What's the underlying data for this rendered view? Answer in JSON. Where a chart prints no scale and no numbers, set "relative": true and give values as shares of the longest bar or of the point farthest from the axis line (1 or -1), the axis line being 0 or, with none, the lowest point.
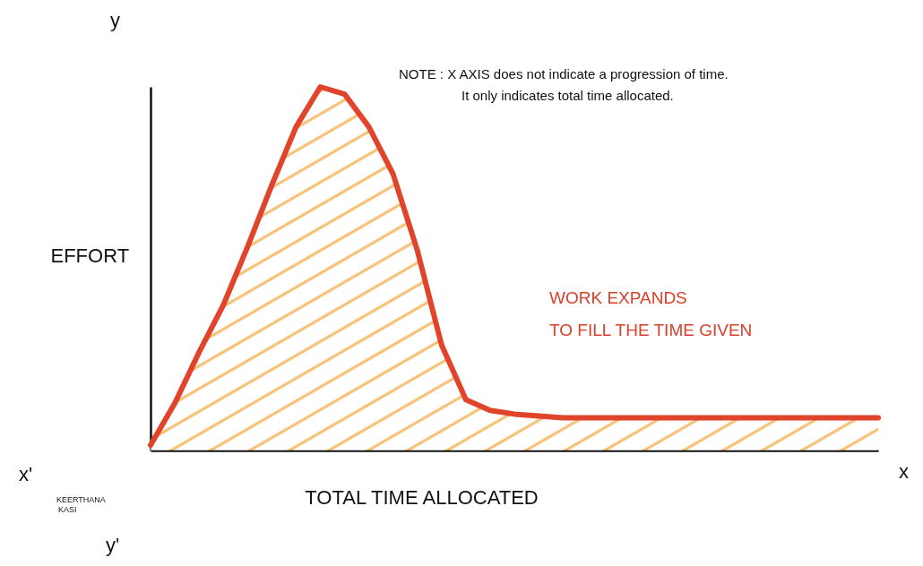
{
  "chart_data": {
    "type": "area",
    "relative": true,
    "xlabel": "TOTAL TIME ALLOCATED",
    "ylabel": "EFFORT",
    "categories": [
      null,
      null,
      null,
      null,
      null,
      null,
      null,
      null,
      null,
      null,
      null,
      null,
      null,
      null,
      null,
      null,
      null,
      null,
      null,
      null,
      null,
      null,
      null,
      null,
      null,
      null,
      null,
      null,
      null,
      null,
      null
    ],
    "series": [
      {
        "color": "#e0442a",
        "values": [
          0.015,
          0.13,
          0.27,
          0.4,
          0.56,
          0.73,
          0.89,
          1,
          0.98,
          0.89,
          0.76,
          0.55,
          0.29,
          0.14,
          0.11,
          0.1,
          0.095,
          0.09,
          0.09,
          0.09,
          0.09,
          0.09,
          0.09,
          0.09,
          0.09,
          0.09,
          0.09,
          0.09,
          0.09,
          0.09,
          0.09
        ]
      }
    ],
    "annotations": [
      "NOTE : X AXIS does not indicate a progression of time.",
      "It only indicates total time allocated.",
      "WORK EXPANDS",
      "TO FILL THE TIME GIVEN",
      "KEERTHANA",
      "KASI",
      "y",
      "x",
      "x'",
      "y'"
    ],
    "grid": false
  }
}
